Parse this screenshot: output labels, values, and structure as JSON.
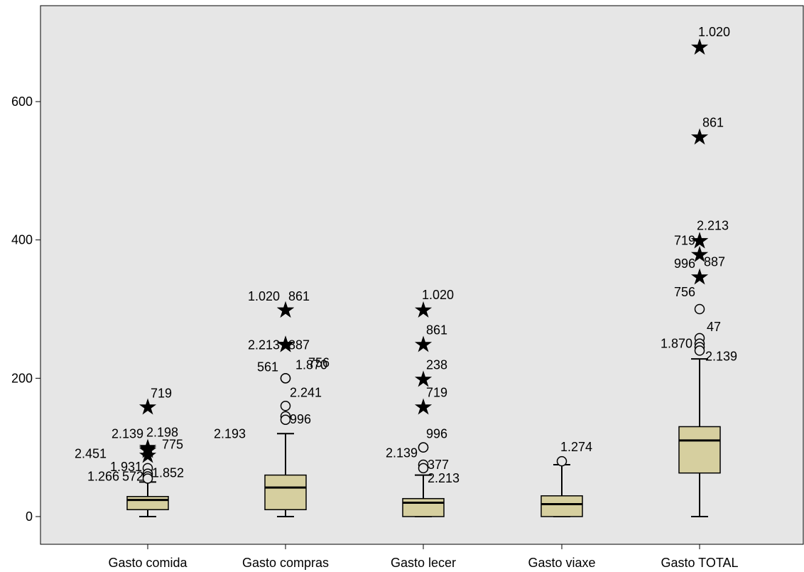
{
  "chart_data": {
    "type": "boxplot",
    "title": "",
    "xlabel": "",
    "ylabel": "",
    "ylim": [
      -40,
      740
    ],
    "yticks": [
      0,
      200,
      400,
      600
    ],
    "grid": false,
    "colors": {
      "plot_bg": "#e6e6e6",
      "box_fill": "#d6cf9f",
      "stroke": "#000000"
    },
    "categories": [
      "Gasto comida",
      "Gasto compras",
      "Gasto lecer",
      "Gasto viaxe",
      "Gasto TOTAL"
    ],
    "boxes": [
      {
        "category": "Gasto comida",
        "min": 0,
        "q1": 10,
        "median": 24,
        "q3": 29,
        "max": 50,
        "outliers": [
          {
            "value": 160,
            "kind": "extreme",
            "label": "719"
          },
          {
            "value": 101,
            "kind": "extreme",
            "label": "2.198"
          },
          {
            "value": 99,
            "kind": "extreme",
            "label": "2.139"
          },
          {
            "value": 97,
            "kind": "extreme",
            "label": "775"
          },
          {
            "value": 90,
            "kind": "extreme",
            "label": "2.451"
          },
          {
            "value": 70,
            "kind": "outlier",
            "label": "1.931"
          },
          {
            "value": 62,
            "kind": "outlier",
            "label": "1.852"
          },
          {
            "value": 58,
            "kind": "outlier",
            "label": "1.266"
          },
          {
            "value": 55,
            "kind": "outlier",
            "label": "572"
          }
        ]
      },
      {
        "category": "Gasto compras",
        "min": 0,
        "q1": 10,
        "median": 42,
        "q3": 60,
        "max": 120,
        "outliers": [
          {
            "value": 300,
            "kind": "extreme",
            "label": "1.020"
          },
          {
            "value": 300,
            "kind": "extreme",
            "label": "861"
          },
          {
            "value": 250,
            "kind": "extreme",
            "label": "2.213"
          },
          {
            "value": 250,
            "kind": "extreme",
            "label": "887"
          },
          {
            "value": 250,
            "kind": "extreme",
            "label": "756"
          },
          {
            "value": 200,
            "kind": "outlier",
            "label": "561"
          },
          {
            "value": 200,
            "kind": "outlier",
            "label": "1.870"
          },
          {
            "value": 160,
            "kind": "outlier",
            "label": "2.241"
          },
          {
            "value": 145,
            "kind": "outlier",
            "label": "996"
          },
          {
            "value": 140,
            "kind": "outlier",
            "label": "2.193"
          }
        ]
      },
      {
        "category": "Gasto lecer",
        "min": 0,
        "q1": 0,
        "median": 20,
        "q3": 26,
        "max": 60,
        "outliers": [
          {
            "value": 300,
            "kind": "extreme",
            "label": "1.020"
          },
          {
            "value": 250,
            "kind": "extreme",
            "label": "861"
          },
          {
            "value": 200,
            "kind": "extreme",
            "label": "238"
          },
          {
            "value": 160,
            "kind": "extreme",
            "label": "719"
          },
          {
            "value": 100,
            "kind": "outlier",
            "label": "2.139"
          },
          {
            "value": 100,
            "kind": "outlier",
            "label": "996"
          },
          {
            "value": 75,
            "kind": "outlier",
            "label": "377"
          },
          {
            "value": 70,
            "kind": "outlier",
            "label": "2.213"
          }
        ]
      },
      {
        "category": "Gasto viaxe",
        "min": 0,
        "q1": 0,
        "median": 18,
        "q3": 30,
        "max": 75,
        "outliers": [
          {
            "value": 80,
            "kind": "outlier",
            "label": "1.274"
          }
        ]
      },
      {
        "category": "Gasto TOTAL",
        "min": 0,
        "q1": 63,
        "median": 110,
        "q3": 130,
        "max": 228,
        "outliers": [
          {
            "value": 680,
            "kind": "extreme",
            "label": "1.020"
          },
          {
            "value": 550,
            "kind": "extreme",
            "label": "861"
          },
          {
            "value": 400,
            "kind": "extreme",
            "label": "2.213"
          },
          {
            "value": 400,
            "kind": "extreme",
            "label": "719"
          },
          {
            "value": 380,
            "kind": "extreme",
            "label": "996"
          },
          {
            "value": 348,
            "kind": "extreme",
            "label": "887"
          },
          {
            "value": 300,
            "kind": "outlier",
            "label": "756"
          },
          {
            "value": 258,
            "kind": "outlier",
            "label": "47"
          },
          {
            "value": 250,
            "kind": "outlier",
            "label": "1.870"
          },
          {
            "value": 245,
            "kind": "outlier",
            "label": "2.139"
          },
          {
            "value": 240,
            "kind": "outlier",
            "label": ""
          }
        ]
      }
    ]
  }
}
